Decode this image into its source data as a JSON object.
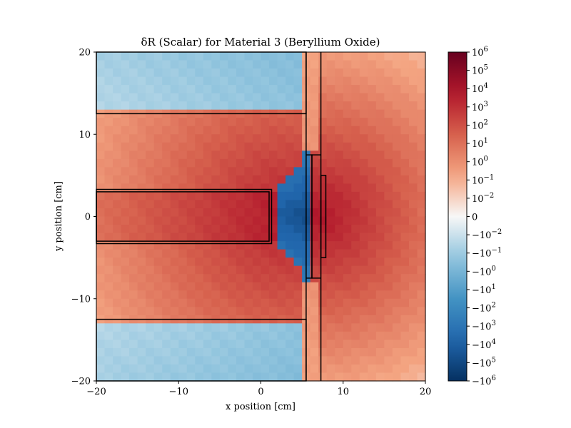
{
  "chart_data": {
    "type": "heatmap",
    "title": "δR (Scalar) for Material 3 (Beryllium Oxide)",
    "xlabel": "x position [cm]",
    "ylabel": "y position [cm]",
    "xlim": [
      -20,
      20
    ],
    "ylim": [
      -20,
      20
    ],
    "x_ticks": [
      -20,
      -10,
      0,
      10,
      20
    ],
    "y_ticks": [
      -20,
      -10,
      0,
      10,
      20
    ],
    "x_tick_labels": [
      "−20",
      "−10",
      "0",
      "10",
      "20"
    ],
    "y_tick_labels": [
      "−20",
      "−10",
      "0",
      "10",
      "20"
    ],
    "grid": false,
    "cells": {
      "nx": 40,
      "ny": 40
    },
    "colormap": "RdBu_r",
    "color_scale": "symlog",
    "colorbar": {
      "range": [
        -1000000,
        1000000
      ],
      "ticks": [
        {
          "base": "10",
          "exp": "6"
        },
        {
          "base": "10",
          "exp": "5"
        },
        {
          "base": "10",
          "exp": "4"
        },
        {
          "base": "10",
          "exp": "3"
        },
        {
          "base": "10",
          "exp": "2"
        },
        {
          "base": "10",
          "exp": "1"
        },
        {
          "base": "10",
          "exp": "0"
        },
        {
          "base": "10",
          "exp": "−1"
        },
        {
          "base": "10",
          "exp": "−2"
        },
        {
          "base": "0",
          "exp": ""
        },
        {
          "base": "−10",
          "exp": "−2"
        },
        {
          "base": "−10",
          "exp": "−1"
        },
        {
          "base": "−10",
          "exp": "0"
        },
        {
          "base": "−10",
          "exp": "1"
        },
        {
          "base": "−10",
          "exp": "2"
        },
        {
          "base": "−10",
          "exp": "3"
        },
        {
          "base": "−10",
          "exp": "4"
        },
        {
          "base": "−10",
          "exp": "5"
        },
        {
          "base": "−10",
          "exp": "6"
        }
      ]
    },
    "geometry_outlines": [
      {
        "name": "upper-reflector",
        "x": [
          -20,
          5.5,
          5.5,
          -20
        ],
        "y": [
          12.5,
          12.5,
          20,
          20
        ]
      },
      {
        "name": "lower-reflector",
        "x": [
          -20,
          5.5,
          5.5,
          -20
        ],
        "y": [
          -12.5,
          -12.5,
          -20,
          -20
        ]
      },
      {
        "name": "beam-tube-outer",
        "x": [
          -20,
          1.3,
          1.3,
          -20
        ],
        "y": [
          3.3,
          3.3,
          -3.3,
          -3.3
        ]
      },
      {
        "name": "beam-tube-inner",
        "x": [
          -20,
          1.0,
          1.0,
          -20
        ],
        "y": [
          3.0,
          3.0,
          -3.0,
          -3.0
        ]
      },
      {
        "name": "wall-left",
        "x": [
          5.5,
          5.5,
          6.2,
          6.2,
          5.5,
          5.5
        ],
        "y": [
          20,
          7.5,
          7.5,
          -7.5,
          -7.5,
          -20
        ]
      },
      {
        "name": "wall-right",
        "x": [
          7.3,
          7.3,
          6.2,
          6.2,
          7.3,
          7.3
        ],
        "y": [
          20,
          7.5,
          7.5,
          -7.5,
          -7.5,
          -20
        ]
      },
      {
        "name": "sample",
        "x": [
          7.3,
          7.9,
          7.9,
          7.3
        ],
        "y": [
          5,
          5,
          -5,
          -5
        ]
      }
    ]
  }
}
